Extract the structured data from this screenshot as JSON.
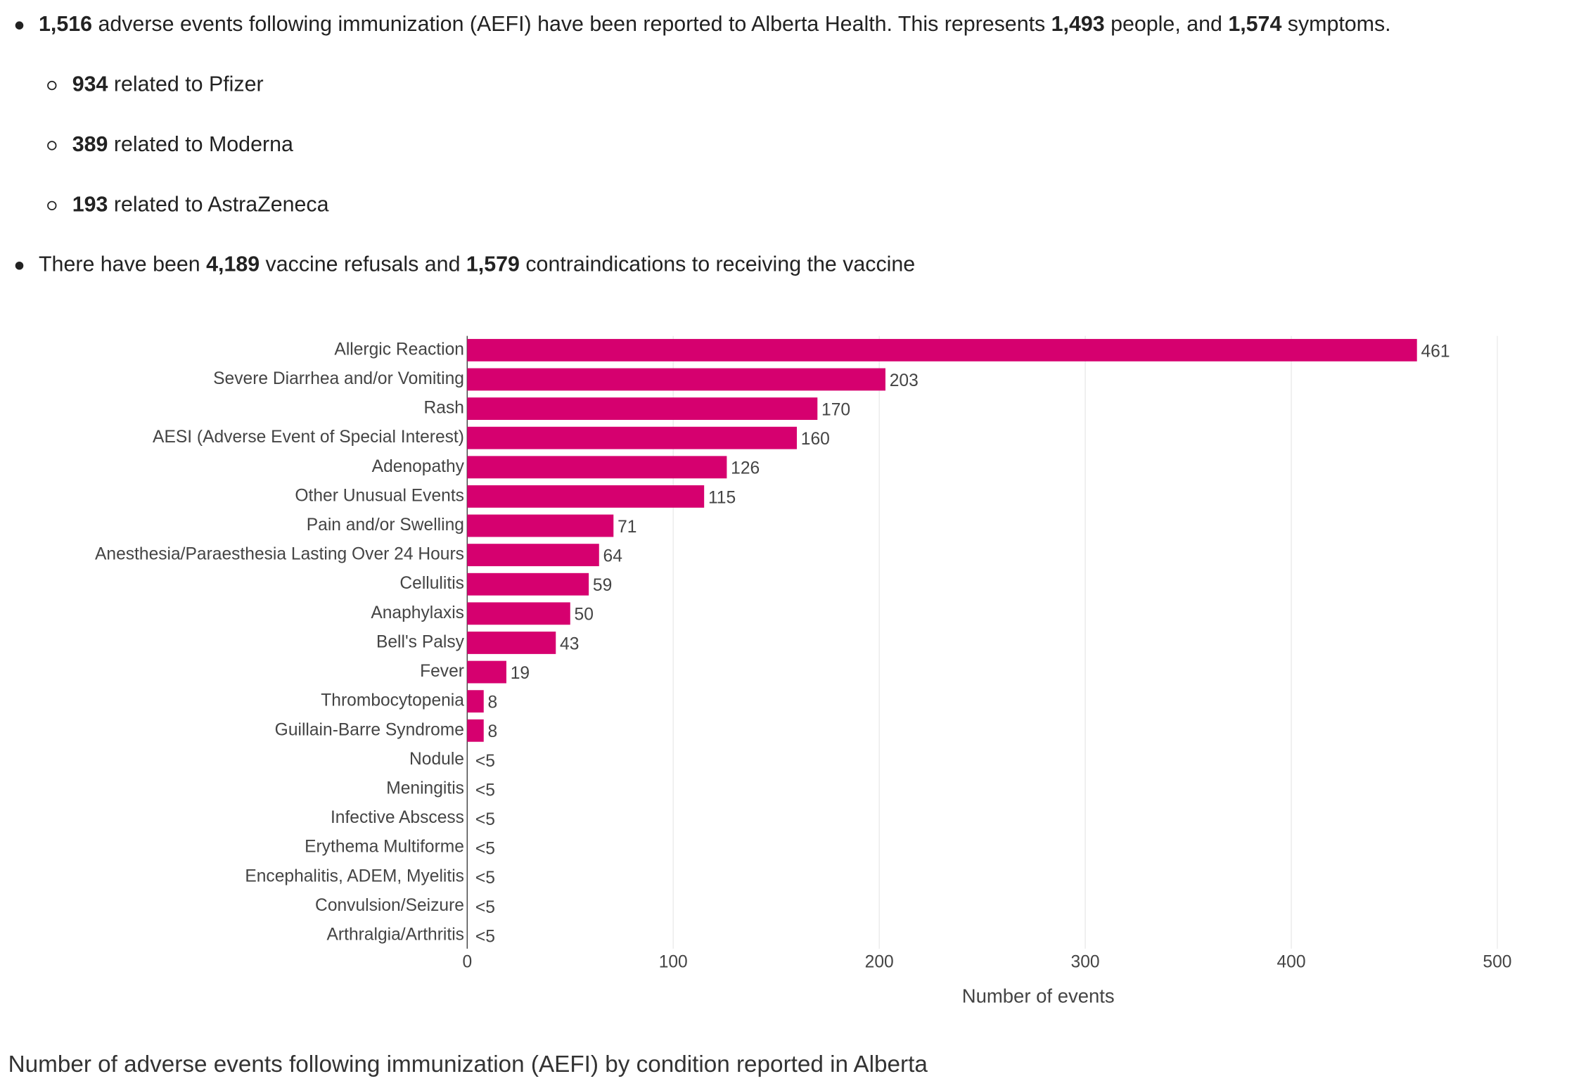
{
  "bullets": [
    {
      "segments": [
        {
          "text": "1,516",
          "bold": true
        },
        {
          "text": " adverse events following immunization (AEFI) have been reported to Alberta Health. This represents "
        },
        {
          "text": "1,493",
          "bold": true
        },
        {
          "text": " people, and "
        },
        {
          "text": "1,574",
          "bold": true
        },
        {
          "text": " symptoms."
        }
      ],
      "sub": [
        {
          "segments": [
            {
              "text": "934",
              "bold": true
            },
            {
              "text": " related to Pfizer"
            }
          ]
        },
        {
          "segments": [
            {
              "text": "389",
              "bold": true
            },
            {
              "text": " related to Moderna"
            }
          ]
        },
        {
          "segments": [
            {
              "text": "193",
              "bold": true
            },
            {
              "text": " related to AstraZeneca"
            }
          ]
        }
      ]
    },
    {
      "segments": [
        {
          "text": "There have been "
        },
        {
          "text": "4,189",
          "bold": true
        },
        {
          "text": " vaccine refusals and "
        },
        {
          "text": "1,579",
          "bold": true
        },
        {
          "text": " contraindications to receiving the vaccine"
        }
      ]
    }
  ],
  "chart_data": {
    "type": "hbar",
    "x_label": "Number of events",
    "color": "#d6006f",
    "categories": [
      "Allergic Reaction",
      "Severe Diarrhea and/or Vomiting",
      "Rash",
      "AESI (Adverse Event of Special Interest)",
      "Adenopathy",
      "Other Unusual Events",
      "Pain and/or Swelling",
      "Anesthesia/Paraesthesia Lasting Over 24 Hours",
      "Cellulitis",
      "Anaphylaxis",
      "Bell's Palsy",
      "Fever",
      "Thrombocytopenia",
      "Guillain-Barre Syndrome",
      "Nodule",
      "Meningitis",
      "Infective Abscess",
      "Erythema Multiforme",
      "Encephalitis, ADEM, Myelitis",
      "Convulsion/Seizure",
      "Arthralgia/Arthritis"
    ],
    "values": [
      461,
      203,
      170,
      160,
      126,
      115,
      71,
      64,
      59,
      50,
      43,
      19,
      8,
      8,
      null,
      null,
      null,
      null,
      null,
      null,
      null
    ],
    "value_labels": [
      "461",
      "203",
      "170",
      "160",
      "126",
      "115",
      "71",
      "64",
      "59",
      "50",
      "43",
      "19",
      "8",
      "8",
      "<5",
      "<5",
      "<5",
      "<5",
      "<5",
      "<5",
      "<5"
    ],
    "xlim": [
      0,
      500
    ],
    "xticks": [
      0,
      100,
      200,
      300,
      400,
      500
    ],
    "grid": true
  },
  "caption": "Number of adverse events following immunization (AEFI) by condition reported in Alberta"
}
